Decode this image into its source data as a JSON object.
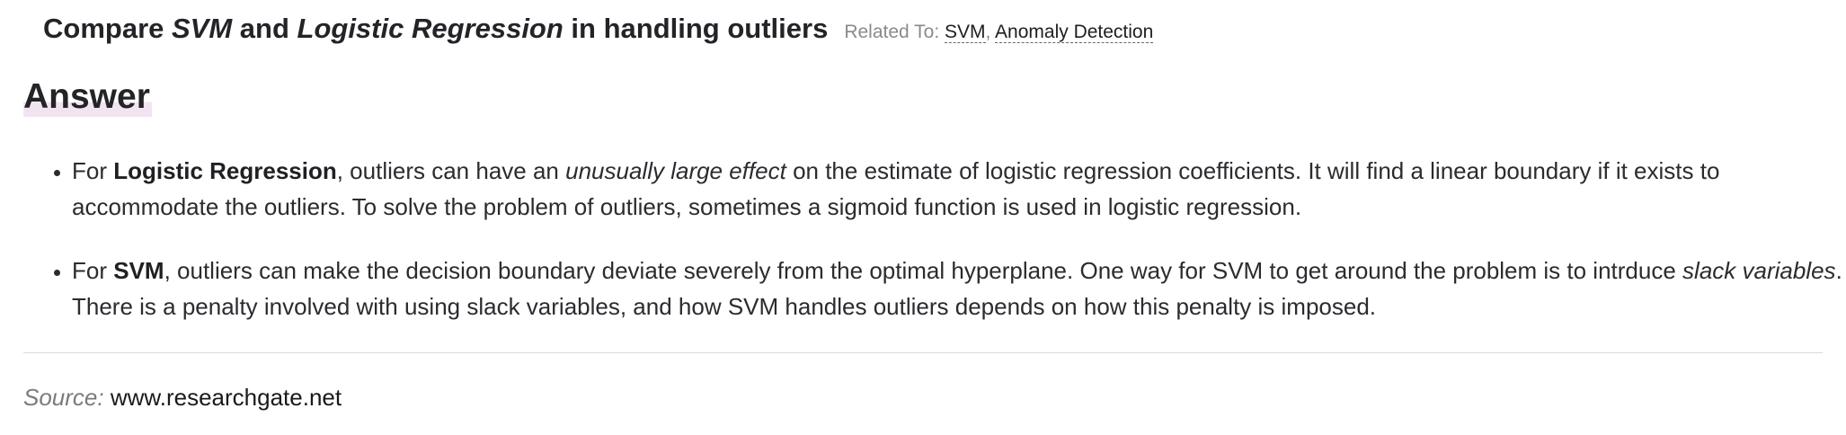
{
  "question": {
    "title_prefix": "Compare ",
    "title_term1": "SVM",
    "title_mid": " and ",
    "title_term2": "Logistic Regression",
    "title_suffix": " in handling outliers",
    "related_label": "Related To: ",
    "related_tags": [
      "SVM",
      "Anomaly Detection"
    ],
    "related_separator": ", "
  },
  "answer": {
    "heading": "Answer",
    "items": [
      {
        "lead": "For ",
        "subject": "Logistic Regression",
        "text1": ", outliers can have an ",
        "emphasis": "unusually large effect",
        "text2": " on the estimate of logistic regression coefficients. It will find a linear boundary if it exists to accommodate the outliers. To solve the problem of outliers, sometimes a sigmoid function is used in logistic regression."
      },
      {
        "lead": "For ",
        "subject": "SVM",
        "text1": ", outliers can make the decision boundary deviate severely from the optimal hyperplane. One way for SVM to get around the problem is to intrduce ",
        "emphasis": "slack variables",
        "text2": ". There is a penalty involved with using slack variables, and how SVM handles outliers depends on how this penalty is imposed."
      }
    ]
  },
  "source": {
    "label": "Source:",
    "value": "www.researchgate.net"
  }
}
